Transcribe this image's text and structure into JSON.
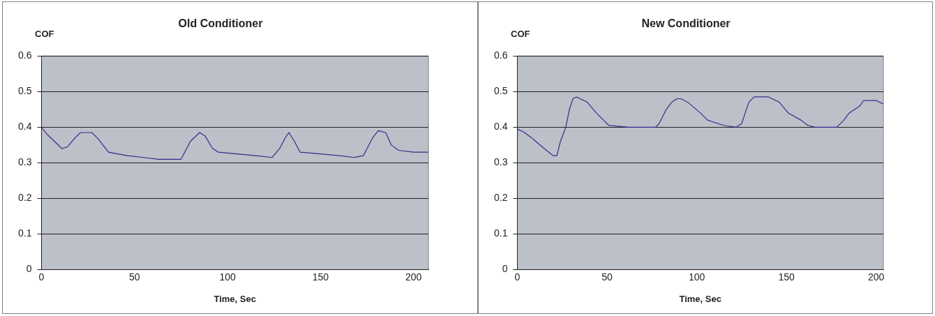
{
  "chart_data": [
    {
      "type": "line",
      "title": "Old Conditioner",
      "ylabel": "COF",
      "xlabel": "Time, Sec",
      "xlim": [
        0,
        208
      ],
      "xticks": [
        0,
        50,
        100,
        150,
        200
      ],
      "ylim": [
        0,
        0.6
      ],
      "yticks": [
        0,
        0.1,
        0.2,
        0.3,
        0.4,
        0.5,
        0.6
      ],
      "grid": "y",
      "legend": false,
      "marker": "none",
      "line_style": "solid",
      "series": [
        {
          "color": "#3a2a8c",
          "x": [
            0,
            3,
            7,
            11,
            14,
            18,
            21,
            27,
            30,
            36,
            41,
            46,
            55,
            63,
            70,
            75,
            76,
            80,
            85,
            88,
            92,
            95,
            105,
            115,
            124,
            128,
            131,
            133,
            136,
            139,
            150,
            160,
            168,
            173,
            175,
            178,
            181,
            185,
            188,
            192,
            200,
            208
          ],
          "values": [
            0.4,
            0.38,
            0.36,
            0.34,
            0.345,
            0.37,
            0.385,
            0.385,
            0.37,
            0.33,
            0.325,
            0.32,
            0.315,
            0.31,
            0.31,
            0.31,
            0.32,
            0.36,
            0.385,
            0.375,
            0.34,
            0.33,
            0.325,
            0.32,
            0.315,
            0.34,
            0.37,
            0.385,
            0.36,
            0.33,
            0.325,
            0.32,
            0.315,
            0.32,
            0.34,
            0.37,
            0.39,
            0.385,
            0.35,
            0.335,
            0.33,
            0.33
          ]
        }
      ]
    },
    {
      "type": "line",
      "title": "New Conditioner",
      "ylabel": "COF",
      "xlabel": "Time, Sec",
      "xlim": [
        0,
        204
      ],
      "xticks": [
        0,
        50,
        100,
        150,
        200
      ],
      "ylim": [
        0,
        0.6
      ],
      "yticks": [
        0,
        0.1,
        0.2,
        0.3,
        0.4,
        0.5,
        0.6
      ],
      "grid": "y",
      "legend": false,
      "marker": "none",
      "line_style": "solid",
      "series": [
        {
          "color": "#3a2a8c",
          "x": [
            0,
            4,
            8,
            15,
            20,
            22,
            24,
            27,
            29,
            31,
            33,
            39,
            44,
            48,
            51,
            62,
            77,
            79,
            83,
            86,
            89,
            91,
            95,
            102,
            106,
            115,
            122,
            125,
            129,
            132,
            140,
            146,
            151,
            158,
            162,
            166,
            178,
            182,
            185,
            191,
            193,
            200,
            204
          ],
          "values": [
            0.395,
            0.385,
            0.37,
            0.34,
            0.32,
            0.32,
            0.36,
            0.4,
            0.45,
            0.48,
            0.485,
            0.47,
            0.44,
            0.42,
            0.405,
            0.4,
            0.4,
            0.41,
            0.45,
            0.47,
            0.48,
            0.48,
            0.47,
            0.44,
            0.42,
            0.405,
            0.4,
            0.41,
            0.47,
            0.485,
            0.485,
            0.47,
            0.44,
            0.42,
            0.405,
            0.4,
            0.4,
            0.42,
            0.44,
            0.46,
            0.475,
            0.475,
            0.465
          ]
        }
      ]
    }
  ]
}
